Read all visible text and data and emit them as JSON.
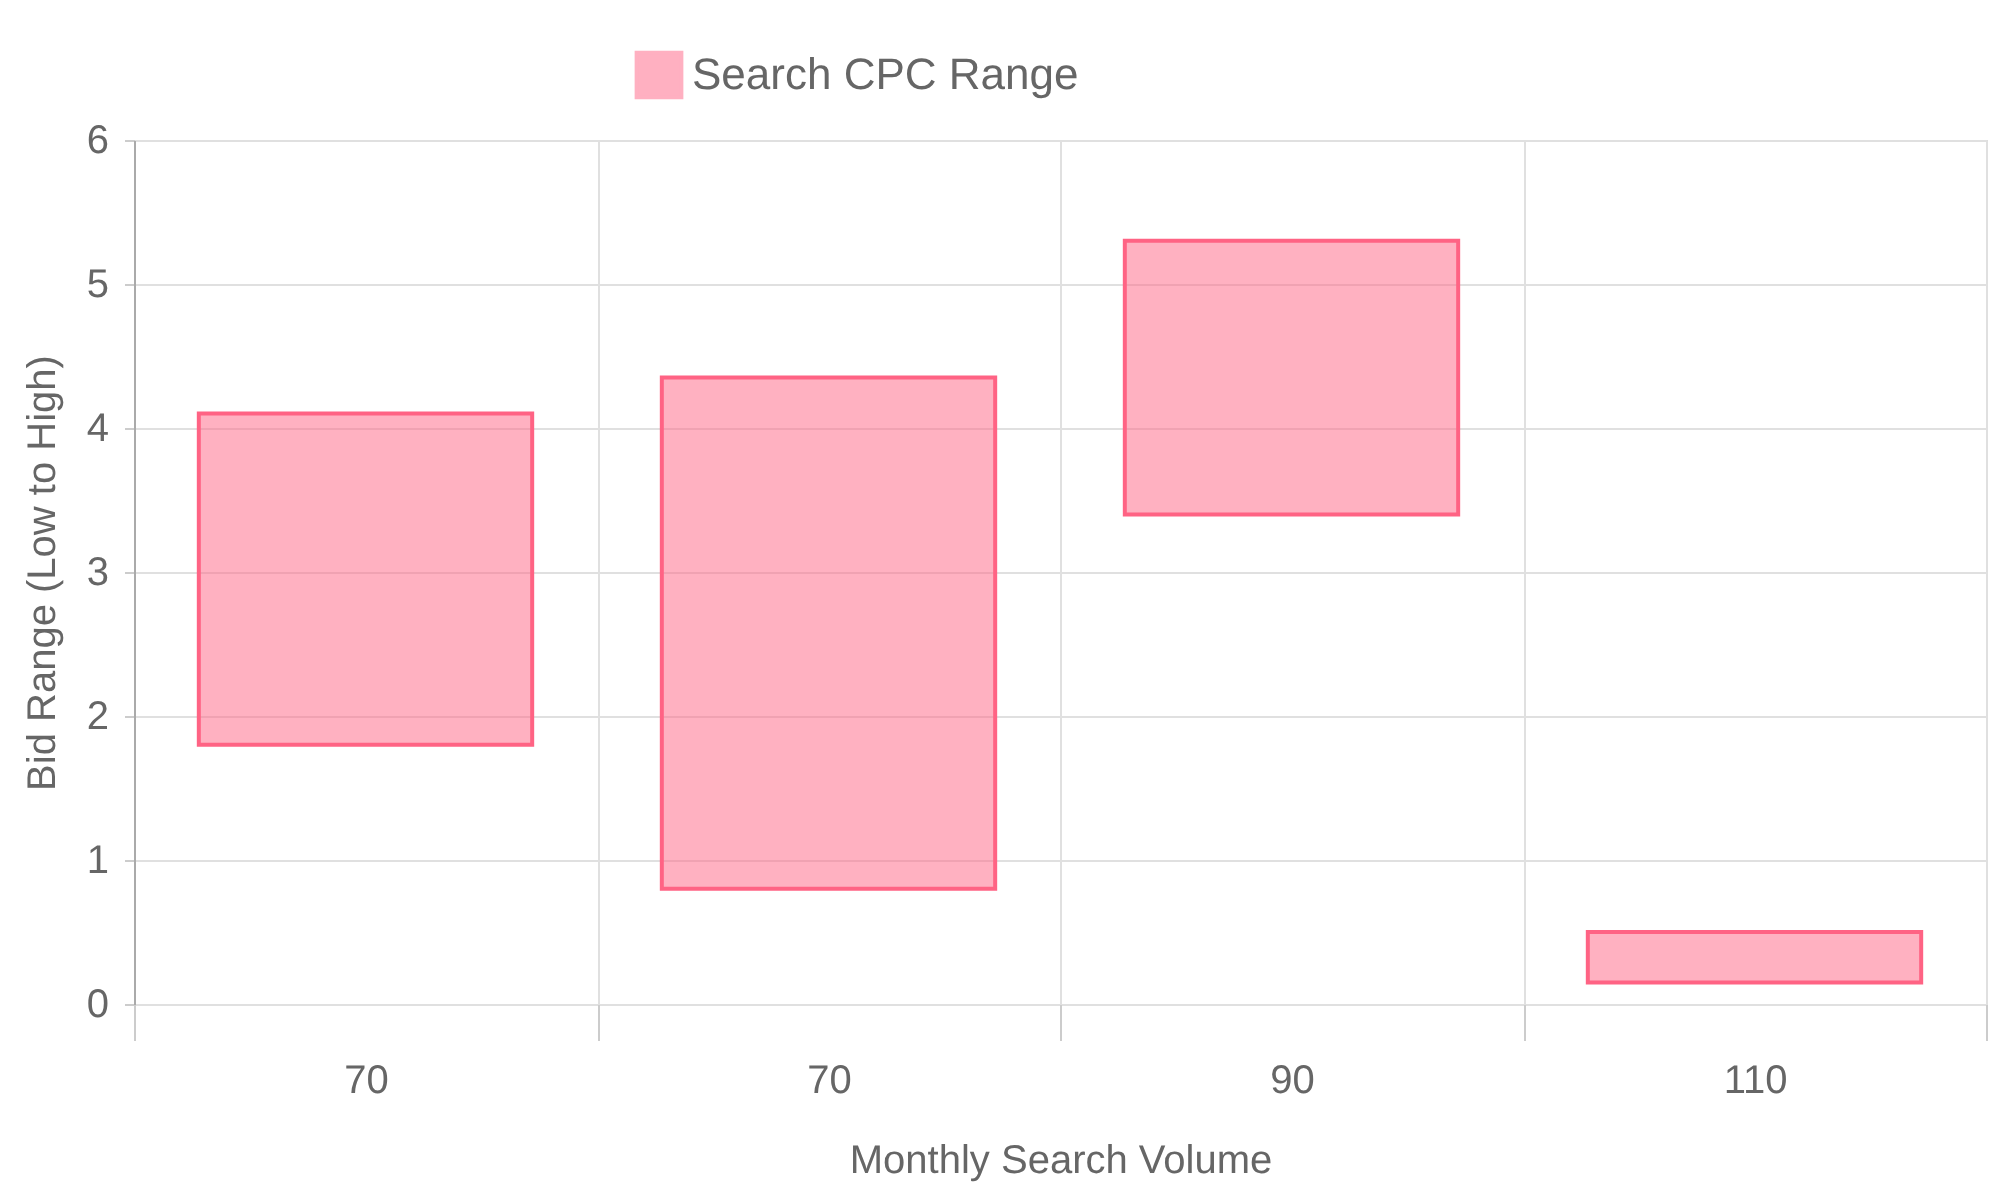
{
  "chart_data": {
    "type": "bar",
    "xlabel": "Monthly Search Volume",
    "ylabel": "Bid Range (Low to High)",
    "categories": [
      "70",
      "70",
      "90",
      "110"
    ],
    "series": [
      {
        "name": "Search CPC Range",
        "color": "#ff6384",
        "values": [
          2.3,
          3.55,
          1.9,
          0.35
        ],
        "base": [
          1.8,
          0.8,
          3.4,
          0.15
        ]
      }
    ],
    "ylim": [
      0,
      6
    ],
    "yticks": [
      0,
      1,
      2,
      3,
      4,
      5,
      6
    ],
    "grid": true,
    "legend": "top"
  }
}
